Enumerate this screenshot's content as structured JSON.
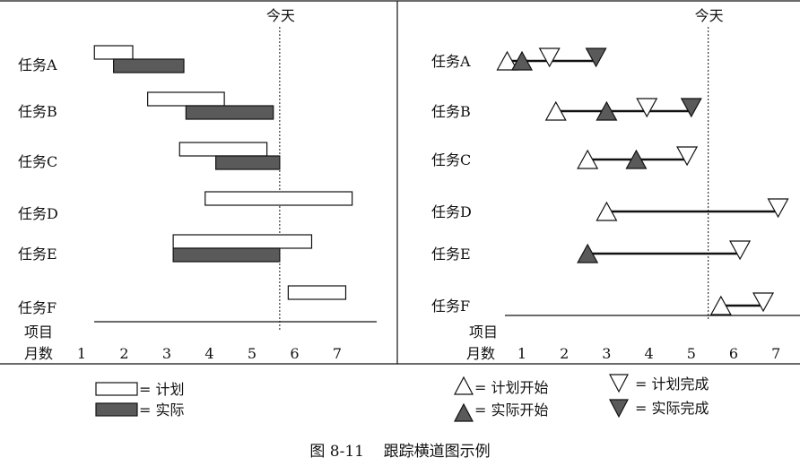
{
  "caption": "图 8-11    跟踪横道图示例",
  "today_label": "今天",
  "left_panel": {
    "tasks": [
      "任务A",
      "任务B",
      "任务C",
      "任务D",
      "任务E",
      "任务F"
    ],
    "axis_row_label": "项目",
    "axis_label": "月数",
    "ticks": [
      "1",
      "2",
      "3",
      "4",
      "5",
      "6",
      "7"
    ],
    "today": 5.65,
    "bars": [
      {
        "task": "任务A",
        "plan": [
          1.3,
          2.2
        ],
        "actual": [
          1.75,
          3.4
        ]
      },
      {
        "task": "任务B",
        "plan": [
          2.55,
          4.35
        ],
        "actual": [
          3.45,
          5.5
        ]
      },
      {
        "task": "任务C",
        "plan": [
          3.3,
          5.35
        ],
        "actual": [
          4.15,
          5.65
        ]
      },
      {
        "task": "任务D",
        "plan": [
          3.9,
          7.35
        ],
        "actual": null
      },
      {
        "task": "任务E",
        "plan": [
          3.15,
          6.4
        ],
        "actual": [
          3.15,
          5.65
        ]
      },
      {
        "task": "任务F",
        "plan": [
          5.85,
          7.2
        ],
        "actual": null
      }
    ]
  },
  "right_panel": {
    "tasks": [
      "任务A",
      "任务B",
      "任务C",
      "任务D",
      "任务E",
      "任务F"
    ],
    "axis_row_label": "项目",
    "axis_label": "月数",
    "ticks": [
      "1",
      "2",
      "3",
      "4",
      "5",
      "6",
      "7"
    ],
    "today": 5.4,
    "milestones": [
      {
        "task": "任务A",
        "plan_start": 0.65,
        "actual_start": 1.0,
        "plan_finish": 1.65,
        "actual_finish": 2.75
      },
      {
        "task": "任务B",
        "plan_start": 1.8,
        "actual_start": 3.0,
        "plan_finish": 3.95,
        "actual_finish": 5.0
      },
      {
        "task": "任务C",
        "plan_start": 2.55,
        "actual_start": 3.7,
        "plan_finish": 4.9,
        "actual_finish": null
      },
      {
        "task": "任务D",
        "plan_start": 3.0,
        "actual_start": null,
        "plan_finish": 7.05,
        "actual_finish": null
      },
      {
        "task": "任务E",
        "plan_start": null,
        "actual_start": 2.55,
        "plan_finish": 6.15,
        "actual_finish": null
      },
      {
        "task": "任务F",
        "plan_start": 5.7,
        "actual_start": null,
        "plan_finish": 6.7,
        "actual_finish": null
      }
    ]
  },
  "legend": {
    "plan": "= 计划",
    "actual": "= 实际",
    "plan_start": "= 计划开始",
    "plan_finish": "= 计划完成",
    "actual_start": "= 实际开始",
    "actual_finish": "= 实际完成"
  },
  "colors": {
    "actual_fill": "#5a5a5a",
    "plan_fill": "#ffffff",
    "line": "#111111"
  }
}
